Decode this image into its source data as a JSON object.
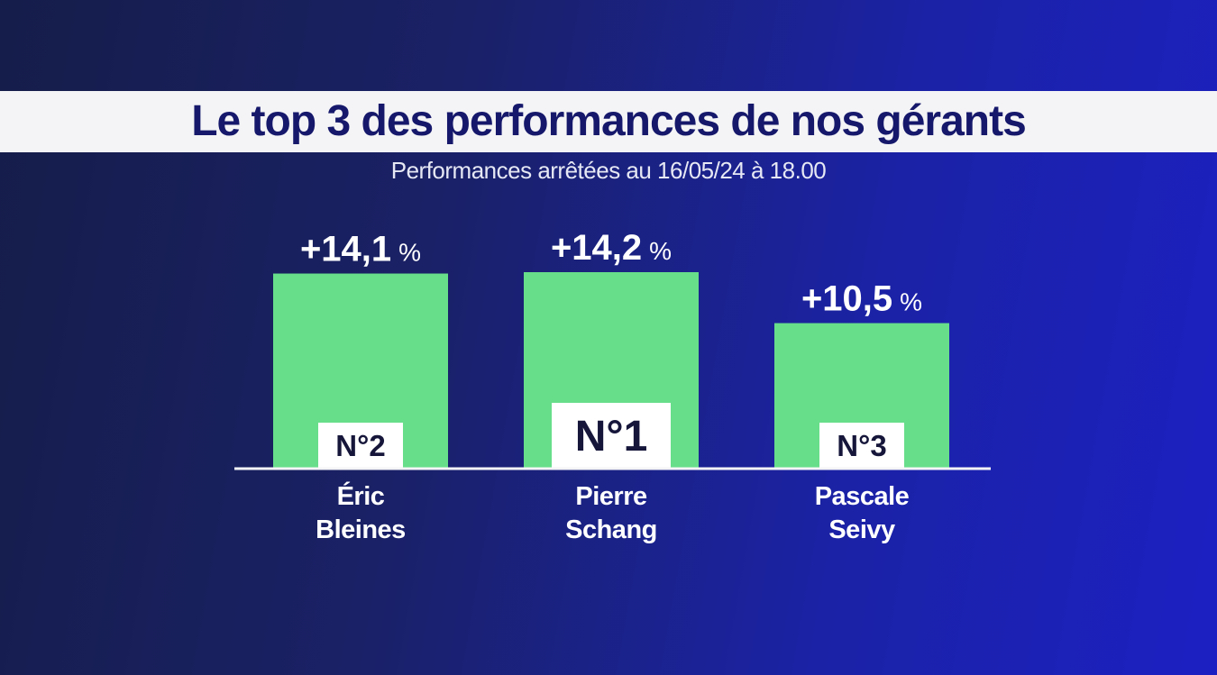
{
  "header": {
    "title": "Le top 3 des performances de nos gérants",
    "subtitle": "Performances arrêtées au 16/05/24 à 18.00"
  },
  "colors": {
    "bar": "#66de8a",
    "title_band": "#f4f4f6",
    "title_text": "#16196b",
    "background": "#1b22a6"
  },
  "chart_data": {
    "type": "bar",
    "categories": [
      "Éric Bleines",
      "Pierre Schang",
      "Pascale Seivy"
    ],
    "name_lines": [
      [
        "Éric",
        "Bleines"
      ],
      [
        "Pierre",
        "Schang"
      ],
      [
        "Pascale",
        "Seivy"
      ]
    ],
    "values": [
      14.1,
      14.2,
      10.5
    ],
    "value_labels": [
      "+14,1",
      "+14,2",
      "+10,5"
    ],
    "unit": "%",
    "ranks": [
      "N°2",
      "N°1",
      "N°3"
    ],
    "title": "Le top 3 des performances de nos gérants",
    "xlabel": "",
    "ylabel": "",
    "ylim": [
      0,
      14.2
    ],
    "grid": false
  }
}
